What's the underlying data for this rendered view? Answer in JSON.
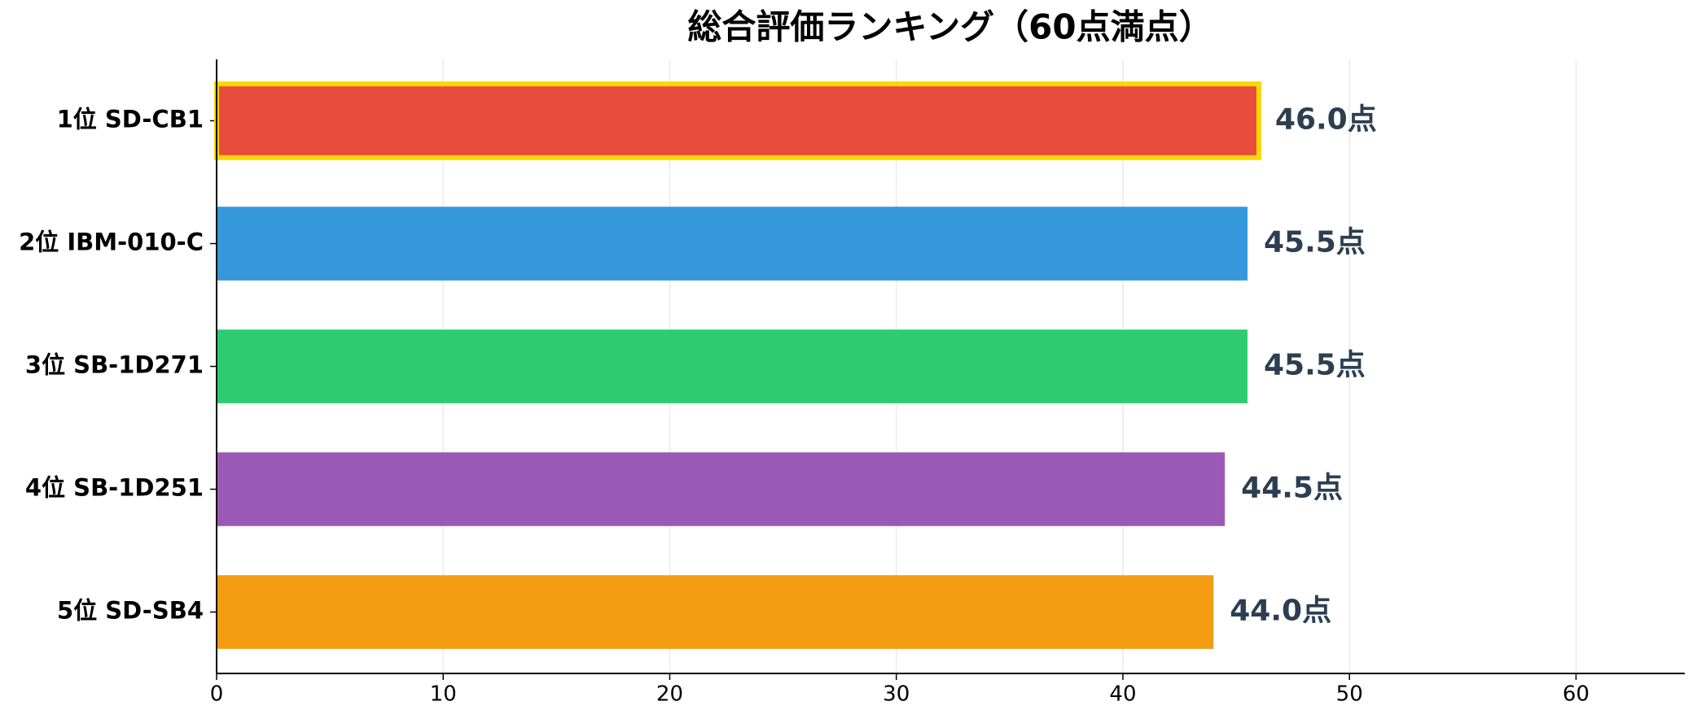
{
  "chart_data": {
    "type": "barh",
    "title": "総合評価ランキング（60点満点）",
    "categories": [
      "1位 SD-CB1",
      "2位 IBM-010-C",
      "3位 SB-1D271",
      "4位 SB-1D251",
      "5位 SD-SB4"
    ],
    "values": [
      46.0,
      45.5,
      45.5,
      44.5,
      44.0
    ],
    "value_labels": [
      "46.0点",
      "45.5点",
      "45.5点",
      "44.5点",
      "44.0点"
    ],
    "colors": [
      "#e74c3c",
      "#3498db",
      "#2ecc71",
      "#9b59b6",
      "#f39c12"
    ],
    "highlight": {
      "index": 0,
      "color": "#ffd700"
    },
    "xlim": [
      0,
      64.8
    ],
    "xticks": [
      0,
      10,
      20,
      30,
      40,
      50,
      60
    ],
    "grid": true
  }
}
